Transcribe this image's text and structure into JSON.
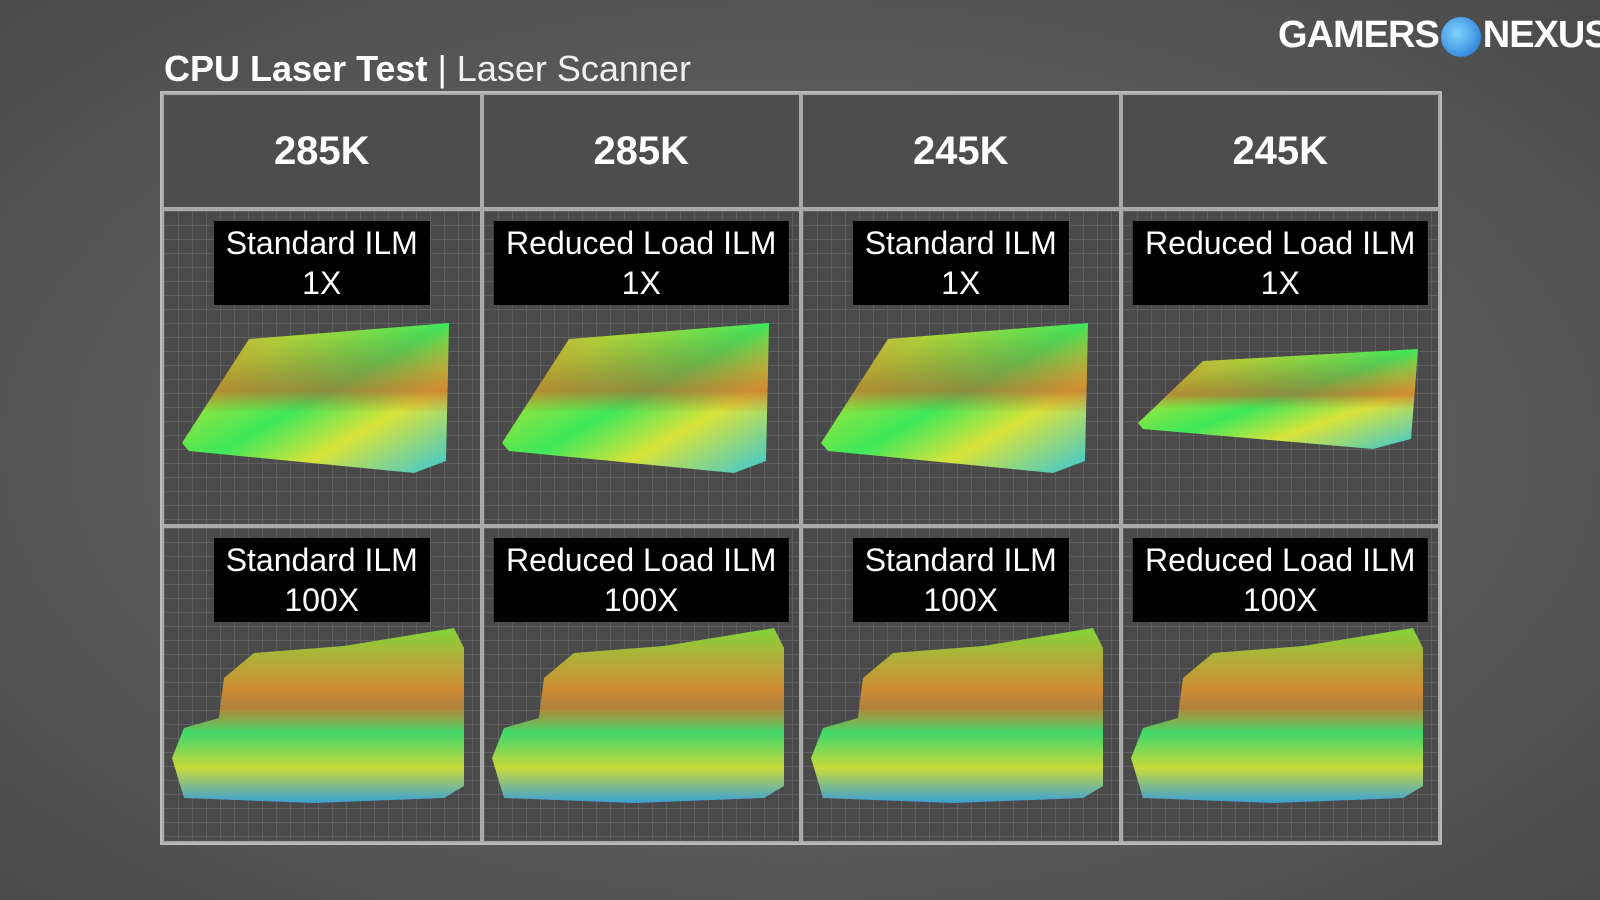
{
  "header": {
    "title": "CPU Laser Test",
    "subtitle": "Laser Scanner"
  },
  "logo": {
    "left": "GAMERS",
    "right": "NEXUS"
  },
  "table": {
    "columns": [
      "285K",
      "285K",
      "245K",
      "245K"
    ],
    "rows": [
      [
        [
          "Standard ILM",
          "1X"
        ],
        [
          "Reduced Load ILM",
          "1X"
        ],
        [
          "Standard ILM",
          "1X"
        ],
        [
          "Reduced Load ILM",
          "1X"
        ]
      ],
      [
        [
          "Standard ILM",
          "100X"
        ],
        [
          "Reduced Load ILM",
          "100X"
        ],
        [
          "Standard ILM",
          "100X"
        ],
        [
          "Reduced Load ILM",
          "100X"
        ]
      ]
    ]
  }
}
